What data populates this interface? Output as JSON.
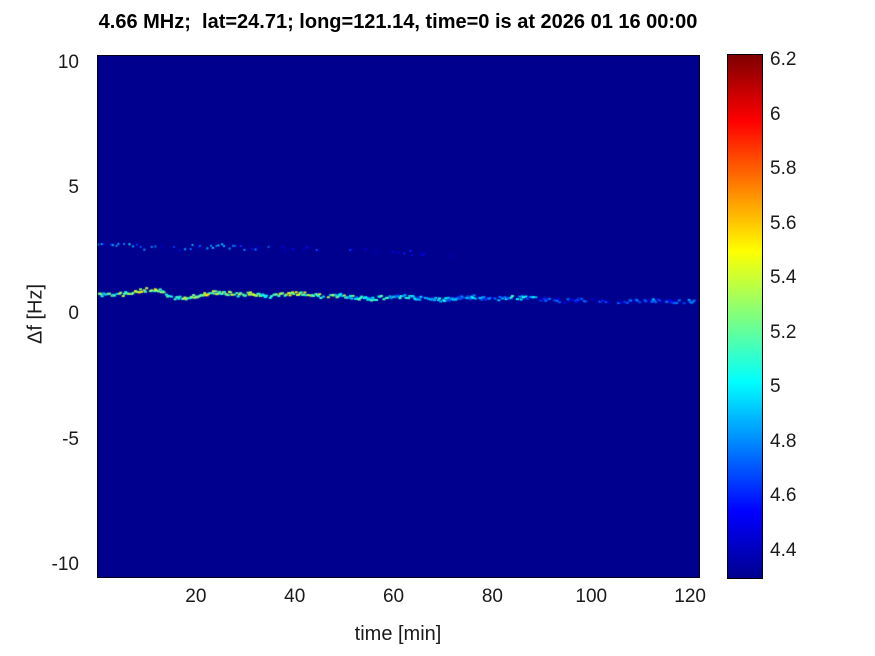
{
  "chart_data": {
    "type": "heatmap",
    "title": "4.66 MHz;  lat=24.71; long=121.14, time=0 is at 2026 01 16 00:00",
    "xlabel": "time [min]",
    "ylabel": "Δf [Hz]",
    "xlim": [
      0,
      122
    ],
    "ylim": [
      -10.5,
      10.3
    ],
    "xticks": [
      20,
      40,
      60,
      80,
      100,
      120
    ],
    "xtick_labels": [
      "20",
      "40",
      "60",
      "80",
      "100",
      "120"
    ],
    "yticks": [
      10,
      5,
      0,
      -5,
      -10
    ],
    "ytick_labels": [
      "10",
      "5",
      "0",
      "-5",
      "-10"
    ],
    "grid": false,
    "background_value": 4.3,
    "colorbar": {
      "position": "right",
      "range": [
        4.3,
        6.22
      ],
      "ticks": [
        6.2,
        6,
        5.8,
        5.6,
        5.4,
        5.2,
        5,
        4.8,
        4.6,
        4.4
      ],
      "tick_labels": [
        "6.2",
        "6",
        "5.8",
        "5.6",
        "5.4",
        "5.2",
        "5",
        "4.8",
        "4.6",
        "4.4"
      ]
    },
    "colormap": {
      "name": "jet",
      "stops": [
        {
          "pos": 0.0,
          "color": "#00008F"
        },
        {
          "pos": 0.125,
          "color": "#0000FF"
        },
        {
          "pos": 0.375,
          "color": "#00FFFF"
        },
        {
          "pos": 0.625,
          "color": "#FFFF00"
        },
        {
          "pos": 0.875,
          "color": "#FF0000"
        },
        {
          "pos": 1.0,
          "color": "#800000"
        }
      ]
    },
    "traces": [
      {
        "name": "primary-doppler-trace",
        "seed": 42,
        "step": 0.25,
        "dot": [
          3,
          2
        ],
        "dropout": 0.18,
        "jitter_f": 0.15,
        "jitter_v": 0.5,
        "points": [
          [
            0,
            0.82,
            5.05
          ],
          [
            3,
            0.78,
            5.1
          ],
          [
            6,
            0.85,
            5.2
          ],
          [
            9,
            0.98,
            5.35
          ],
          [
            12,
            1.02,
            5.3
          ],
          [
            14,
            0.8,
            5.15
          ],
          [
            16,
            0.66,
            5.1
          ],
          [
            19,
            0.72,
            5.25
          ],
          [
            22,
            0.85,
            5.35
          ],
          [
            25,
            0.9,
            5.3
          ],
          [
            28,
            0.8,
            5.2
          ],
          [
            31,
            0.86,
            5.3
          ],
          [
            34,
            0.74,
            5.15
          ],
          [
            37,
            0.8,
            5.25
          ],
          [
            40,
            0.86,
            5.3
          ],
          [
            43,
            0.8,
            5.15
          ],
          [
            46,
            0.72,
            5.2
          ],
          [
            49,
            0.78,
            5.1
          ],
          [
            52,
            0.7,
            5.0
          ],
          [
            55,
            0.64,
            5.05
          ],
          [
            58,
            0.7,
            4.95
          ],
          [
            61,
            0.74,
            4.9
          ],
          [
            64,
            0.68,
            4.85
          ],
          [
            67,
            0.63,
            4.9
          ],
          [
            70,
            0.6,
            4.8
          ],
          [
            73,
            0.66,
            4.75
          ],
          [
            76,
            0.7,
            4.8
          ],
          [
            79,
            0.62,
            4.7
          ],
          [
            82,
            0.66,
            4.85
          ],
          [
            85,
            0.7,
            4.9
          ],
          [
            88,
            0.64,
            4.8
          ],
          [
            91,
            0.6,
            4.6
          ],
          [
            94,
            0.56,
            4.55
          ],
          [
            97,
            0.6,
            4.5
          ],
          [
            100,
            0.58,
            4.55
          ],
          [
            103,
            0.54,
            4.5
          ],
          [
            106,
            0.5,
            4.55
          ],
          [
            109,
            0.55,
            4.65
          ],
          [
            112,
            0.58,
            4.7
          ],
          [
            115,
            0.55,
            4.6
          ],
          [
            118,
            0.52,
            4.65
          ],
          [
            121,
            0.55,
            4.6
          ]
        ]
      },
      {
        "name": "secondary-doppler-trace",
        "seed": 7,
        "step": 0.4,
        "dot": [
          2,
          2
        ],
        "dropout": 0.45,
        "jitter_f": 0.2,
        "jitter_v": 0.4,
        "points": [
          [
            0,
            2.82,
            4.75
          ],
          [
            3,
            2.78,
            4.7
          ],
          [
            6,
            2.75,
            4.8
          ],
          [
            9,
            2.7,
            4.7
          ],
          [
            12,
            2.66,
            4.6
          ],
          [
            15,
            2.64,
            4.55
          ],
          [
            18,
            2.68,
            4.65
          ],
          [
            21,
            2.72,
            4.7
          ],
          [
            24,
            2.74,
            4.75
          ],
          [
            27,
            2.7,
            4.7
          ],
          [
            30,
            2.66,
            4.65
          ],
          [
            33,
            2.62,
            4.6
          ],
          [
            36,
            2.6,
            4.55
          ],
          [
            39,
            2.63,
            4.5
          ],
          [
            42,
            2.6,
            4.55
          ],
          [
            45,
            2.62,
            4.5
          ],
          [
            48,
            2.58,
            4.45
          ],
          [
            51,
            2.55,
            4.45
          ],
          [
            54,
            2.52,
            4.45
          ],
          [
            57,
            2.5,
            4.4
          ],
          [
            60,
            2.48,
            4.45
          ],
          [
            64,
            2.46,
            4.4
          ],
          [
            68,
            2.44,
            4.4
          ],
          [
            72,
            2.42,
            4.4
          ]
        ]
      }
    ]
  }
}
